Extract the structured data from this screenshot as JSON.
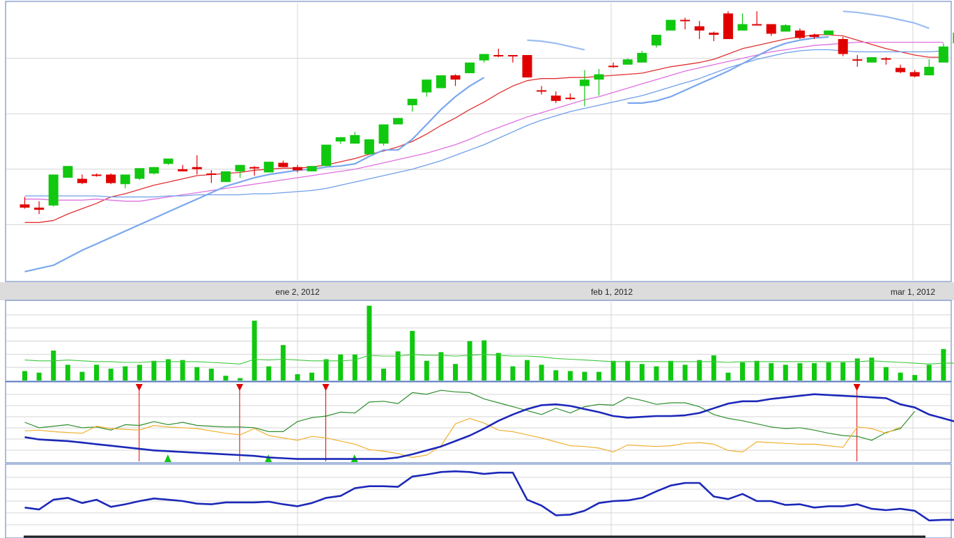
{
  "chart_data": [
    {
      "id": "price",
      "type": "candlestick",
      "x_labels": [
        "ene 2, 2012",
        "feb 1, 2012",
        "mar 1, 2012"
      ],
      "grid": true,
      "y_grid_lines": 5,
      "candles": [
        [
          4.55,
          4.9,
          4.4,
          4.35,
          "down"
        ],
        [
          4.4,
          4.7,
          4.3,
          4.1,
          "down"
        ],
        [
          4.5,
          5.9,
          5.95,
          4.45,
          "up"
        ],
        [
          5.8,
          6.25,
          6.35,
          5.8,
          "up"
        ],
        [
          5.75,
          5.95,
          5.55,
          5.5,
          "down"
        ],
        [
          5.95,
          6.0,
          5.9,
          5.85,
          "down"
        ],
        [
          5.95,
          6.0,
          5.55,
          5.5,
          "down"
        ],
        [
          5.5,
          5.9,
          5.95,
          5.3,
          "up"
        ],
        [
          5.75,
          6.25,
          6.25,
          5.7,
          "up"
        ],
        [
          6.0,
          6.3,
          6.3,
          5.95,
          "up"
        ],
        [
          6.45,
          6.7,
          6.7,
          6.4,
          "up"
        ],
        [
          6.2,
          6.4,
          6.1,
          6.1,
          "down"
        ],
        [
          6.3,
          6.85,
          6.2,
          5.95,
          "down"
        ],
        [
          6.0,
          6.15,
          5.95,
          5.55,
          "down"
        ],
        [
          5.6,
          6.1,
          6.1,
          5.6,
          "up"
        ],
        [
          6.1,
          6.4,
          6.4,
          5.8,
          "up"
        ],
        [
          6.3,
          6.35,
          6.25,
          5.9,
          "down"
        ],
        [
          6.05,
          6.45,
          6.55,
          6.05,
          "up"
        ],
        [
          6.5,
          6.6,
          6.3,
          6.35,
          "down"
        ],
        [
          6.3,
          6.4,
          6.15,
          6.05,
          "down"
        ],
        [
          6.1,
          6.35,
          6.35,
          6.1,
          "up"
        ],
        [
          6.35,
          7.35,
          7.35,
          6.35,
          "up"
        ],
        [
          7.5,
          7.7,
          7.7,
          7.4,
          "up"
        ],
        [
          7.4,
          7.95,
          7.8,
          7.4,
          "up"
        ],
        [
          6.9,
          7.6,
          7.6,
          6.9,
          "up"
        ],
        [
          7.4,
          8.3,
          8.3,
          7.3,
          "up"
        ],
        [
          8.3,
          8.6,
          8.6,
          8.3,
          "up"
        ],
        [
          9.2,
          9.5,
          9.5,
          8.9,
          "up"
        ],
        [
          9.8,
          10.4,
          10.4,
          9.6,
          "up"
        ],
        [
          10.0,
          10.6,
          10.6,
          10.0,
          "up"
        ],
        [
          10.6,
          10.65,
          10.4,
          10.1,
          "down"
        ],
        [
          10.7,
          11.2,
          11.2,
          10.7,
          "up"
        ],
        [
          11.3,
          11.6,
          11.6,
          11.2,
          "up"
        ],
        [
          11.55,
          11.85,
          11.5,
          11.45,
          "down"
        ],
        [
          11.55,
          11.55,
          11.5,
          11.2,
          "down"
        ],
        [
          11.55,
          11.55,
          10.5,
          10.5,
          "down"
        ],
        [
          9.9,
          10.1,
          9.9,
          9.7,
          "down"
        ],
        [
          9.65,
          9.85,
          9.4,
          9.3,
          "down"
        ],
        [
          9.55,
          9.75,
          9.55,
          9.45,
          "down"
        ],
        [
          10.1,
          10.85,
          10.4,
          9.15,
          "up"
        ],
        [
          10.4,
          10.9,
          10.65,
          9.65,
          "up"
        ],
        [
          11.05,
          11.2,
          11.0,
          10.95,
          "down"
        ],
        [
          11.1,
          11.4,
          11.35,
          11.1,
          "up"
        ],
        [
          11.2,
          11.75,
          11.65,
          11.2,
          "up"
        ],
        [
          12.0,
          12.5,
          12.5,
          11.9,
          "up"
        ],
        [
          12.7,
          13.2,
          13.2,
          12.7,
          "up"
        ],
        [
          13.2,
          13.3,
          13.2,
          12.75,
          "down"
        ],
        [
          12.9,
          13.15,
          12.7,
          12.3,
          "down"
        ],
        [
          12.5,
          12.65,
          12.6,
          12.2,
          "down"
        ],
        [
          13.5,
          13.6,
          12.3,
          12.3,
          "down"
        ],
        [
          12.7,
          13.5,
          13.0,
          12.7,
          "up"
        ],
        [
          13.0,
          13.6,
          12.95,
          12.95,
          "down"
        ],
        [
          13.0,
          13.0,
          12.55,
          12.45,
          "down"
        ],
        [
          12.65,
          13.0,
          12.95,
          12.65,
          "up"
        ],
        [
          12.7,
          12.8,
          12.35,
          12.3,
          "down"
        ],
        [
          12.5,
          12.55,
          12.4,
          12.3,
          "down"
        ],
        [
          12.5,
          12.6,
          12.7,
          12.5,
          "up"
        ],
        [
          12.3,
          12.4,
          11.6,
          11.5,
          "down"
        ],
        [
          11.3,
          11.55,
          11.35,
          11.0,
          "down"
        ],
        [
          11.2,
          11.45,
          11.45,
          11.2,
          "up"
        ],
        [
          11.4,
          11.45,
          11.35,
          11.1,
          "down"
        ],
        [
          10.95,
          11.1,
          10.75,
          10.7,
          "down"
        ],
        [
          10.75,
          10.85,
          10.55,
          10.5,
          "down"
        ],
        [
          10.6,
          11.35,
          11.0,
          10.6,
          "up"
        ],
        [
          11.2,
          12.1,
          11.95,
          11.2,
          "up"
        ],
        [
          12.1,
          12.9,
          12.6,
          12.1,
          "up"
        ]
      ],
      "lines": [
        {
          "color": "#e03030",
          "width": 1.3,
          "values": [
            3.7,
            3.7,
            3.8,
            4.1,
            4.35,
            4.6,
            4.9,
            5.05,
            5.25,
            5.45,
            5.6,
            5.75,
            5.9,
            5.95,
            6.0,
            6.05,
            6.15,
            6.2,
            6.25,
            6.25,
            6.3,
            6.4,
            6.55,
            6.7,
            6.9,
            7.05,
            7.25,
            7.5,
            7.85,
            8.25,
            8.6,
            9.0,
            9.35,
            9.75,
            10.1,
            10.35,
            10.45,
            10.45,
            10.5,
            10.5,
            10.55,
            10.6,
            10.65,
            10.7,
            10.85,
            11.0,
            11.1,
            11.2,
            11.35,
            11.6,
            11.85,
            12.0,
            12.15,
            12.3,
            12.4,
            12.5,
            12.5,
            12.45,
            12.25,
            12.05,
            11.85,
            11.7,
            11.55,
            11.45,
            11.45
          ]
        },
        {
          "color": "#e070e0",
          "width": 1.3,
          "values": [
            4.8,
            4.8,
            4.75,
            4.75,
            4.75,
            4.8,
            4.75,
            4.7,
            4.7,
            4.8,
            4.9,
            5.0,
            5.1,
            5.2,
            5.3,
            5.4,
            5.5,
            5.6,
            5.7,
            5.8,
            5.9,
            6.0,
            6.1,
            6.2,
            6.35,
            6.5,
            6.65,
            6.8,
            6.95,
            7.15,
            7.35,
            7.6,
            7.9,
            8.15,
            8.4,
            8.65,
            8.85,
            9.05,
            9.25,
            9.45,
            9.6,
            9.8,
            10.0,
            10.2,
            10.4,
            10.6,
            10.8,
            10.95,
            11.1,
            11.25,
            11.4,
            11.55,
            11.7,
            11.8,
            11.9,
            12.0,
            12.05,
            12.1,
            12.15,
            12.15,
            12.15,
            12.15,
            12.15,
            12.15,
            12.15
          ]
        },
        {
          "color": "#6f9ee8",
          "width": 1.3,
          "values": [
            4.95,
            4.95,
            4.95,
            4.95,
            4.95,
            4.95,
            4.9,
            4.9,
            4.9,
            4.9,
            4.95,
            4.95,
            5.0,
            5.0,
            5.0,
            5.0,
            5.05,
            5.05,
            5.1,
            5.15,
            5.2,
            5.3,
            5.45,
            5.6,
            5.75,
            5.9,
            6.05,
            6.2,
            6.4,
            6.6,
            6.85,
            7.1,
            7.35,
            7.65,
            7.95,
            8.25,
            8.5,
            8.7,
            8.9,
            9.05,
            9.2,
            9.35,
            9.5,
            9.65,
            9.85,
            10.05,
            10.25,
            10.45,
            10.7,
            10.95,
            11.15,
            11.35,
            11.5,
            11.65,
            11.75,
            11.8,
            11.8,
            11.75,
            11.7,
            11.7,
            11.7,
            11.7,
            11.7,
            11.7,
            11.75
          ]
        },
        {
          "color": "#7aa7ee",
          "width": 2.2,
          "values": [
            1.4,
            1.55,
            1.7,
            2.05,
            2.4,
            2.7,
            3.0,
            3.3,
            3.6,
            3.9,
            4.2,
            4.5,
            4.8,
            5.1,
            5.4,
            5.6,
            5.8,
            5.95,
            6.05,
            6.15,
            6.2,
            6.3,
            6.35,
            6.45,
            6.8,
            7.1,
            7.1,
            7.6,
            8.3,
            9.0,
            9.6,
            10.1,
            10.5,
            null,
            null,
            null,
            null,
            null,
            null,
            null,
            null,
            null,
            9.3,
            9.3,
            9.4,
            9.6,
            9.9,
            10.2,
            10.5,
            10.8,
            11.15,
            11.5,
            11.85,
            12.1,
            12.25,
            12.35,
            12.4,
            null,
            null,
            null,
            null,
            null,
            null,
            null,
            null
          ]
        },
        {
          "color": "#9cbcf2",
          "width": 2.2,
          "values": [
            null,
            null,
            null,
            null,
            null,
            null,
            null,
            null,
            null,
            null,
            null,
            null,
            null,
            null,
            null,
            null,
            null,
            null,
            null,
            null,
            null,
            null,
            null,
            null,
            null,
            null,
            null,
            null,
            null,
            null,
            null,
            null,
            null,
            null,
            null,
            12.25,
            12.2,
            12.1,
            11.95,
            11.8,
            null,
            null,
            null,
            null,
            null,
            null,
            null,
            null,
            null,
            null,
            null,
            null,
            null,
            null,
            null,
            null,
            null,
            13.6,
            13.55,
            13.45,
            13.35,
            13.2,
            13.05,
            12.8,
            null
          ]
        }
      ]
    },
    {
      "id": "volume",
      "type": "bar",
      "grid": true,
      "bars": [
        12,
        10,
        38,
        20,
        11,
        20,
        15,
        18,
        20,
        25,
        27,
        26,
        17,
        15,
        6,
        3,
        76,
        18,
        45,
        8,
        10,
        27,
        33,
        33,
        95,
        15,
        37,
        63,
        25,
        36,
        21,
        50,
        51,
        35,
        18,
        26,
        20,
        13,
        12,
        11,
        11,
        25,
        25,
        21,
        18,
        25,
        20,
        26,
        32,
        10,
        23,
        25,
        22,
        20,
        22,
        22,
        23,
        23,
        28,
        29,
        17,
        10,
        7,
        20,
        40,
        15,
        38
      ],
      "avg_line": [
        26,
        25,
        25,
        26,
        25,
        24,
        24,
        23,
        23,
        24,
        24,
        24,
        24,
        23,
        22,
        21,
        27,
        26,
        27,
        26,
        25,
        25,
        25,
        26,
        32,
        31,
        31,
        33,
        32,
        32,
        31,
        32,
        33,
        32,
        31,
        31,
        30,
        28,
        27,
        26,
        25,
        24,
        24,
        24,
        24,
        24,
        24,
        24,
        24,
        23,
        24,
        24,
        24,
        24,
        24,
        24,
        24,
        24,
        24,
        25,
        24,
        23,
        22,
        21,
        22,
        22,
        24
      ]
    },
    {
      "id": "stochastic",
      "type": "line",
      "grid": true,
      "lines": [
        {
          "color": "#2c8e2c",
          "width": 1.2,
          "values": [
            50,
            43,
            45,
            47,
            43,
            44,
            40,
            47,
            46,
            51,
            47,
            50,
            46,
            45,
            44,
            44,
            43,
            38,
            38,
            51,
            56,
            58,
            63,
            62,
            76,
            77,
            74,
            88,
            86,
            91,
            89,
            88,
            80,
            75,
            70,
            65,
            60,
            68,
            62,
            70,
            73,
            72,
            82,
            78,
            73,
            75,
            75,
            70,
            60,
            55,
            52,
            48,
            44,
            42,
            43,
            40,
            36,
            33,
            32,
            27,
            37,
            42,
            64
          ]
        },
        {
          "color": "#f0b030",
          "width": 1.2,
          "values": [
            39,
            40,
            38,
            37,
            36,
            45,
            42,
            41,
            40,
            46,
            44,
            43,
            42,
            39,
            36,
            34,
            42,
            33,
            30,
            27,
            32,
            30,
            26,
            22,
            15,
            13,
            10,
            5,
            8,
            20,
            48,
            55,
            49,
            40,
            38,
            34,
            30,
            25,
            20,
            19,
            17,
            12,
            21,
            20,
            19,
            20,
            23,
            24,
            22,
            14,
            12,
            25,
            24,
            23,
            22,
            22,
            20,
            18,
            44,
            42,
            36,
            44
          ]
        },
        {
          "color": "#1c28b8",
          "width": 2.6,
          "values": [
            31,
            28,
            27,
            26,
            24,
            22,
            20,
            18,
            16,
            14,
            13,
            12,
            11,
            10,
            9,
            8,
            7,
            5,
            4,
            3,
            3,
            3,
            3,
            3,
            3,
            3,
            5,
            9,
            14,
            19,
            26,
            33,
            42,
            52,
            60,
            67,
            72,
            73,
            71,
            67,
            63,
            58,
            56,
            57,
            58,
            58,
            59,
            62,
            68,
            74,
            77,
            77,
            80,
            82,
            84,
            86,
            85,
            84,
            83,
            82,
            81,
            73,
            69,
            60,
            55,
            50,
            45,
            44
          ]
        }
      ],
      "sell_markers": [
        7,
        14,
        20,
        57
      ],
      "buy_markers": [
        9,
        16,
        22,
        64
      ]
    },
    {
      "id": "oscillator",
      "type": "line",
      "grid": true,
      "lines": [
        {
          "color": "#1c28b8",
          "width": 2.6,
          "values": [
            45,
            42,
            57,
            60,
            52,
            57,
            46,
            50,
            55,
            59,
            57,
            55,
            51,
            50,
            53,
            53,
            53,
            54,
            50,
            47,
            52,
            60,
            63,
            75,
            78,
            78,
            77,
            93,
            96,
            100,
            101,
            100,
            97,
            99,
            99,
            57,
            48,
            33,
            34,
            40,
            52,
            55,
            56,
            60,
            70,
            79,
            83,
            83,
            62,
            58,
            66,
            55,
            55,
            49,
            50,
            45,
            47,
            47,
            50,
            43,
            41,
            43,
            40,
            25,
            26,
            26,
            19,
            25,
            35,
            49
          ]
        }
      ]
    }
  ]
}
